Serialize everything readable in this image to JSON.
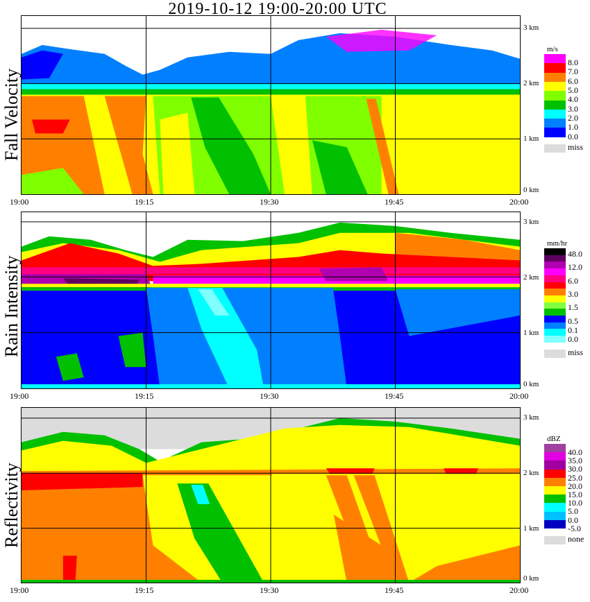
{
  "title": "2019-10-12   19:00-20:00 UTC",
  "chart_data": [
    {
      "type": "heatmap",
      "title": "Fall Velocity",
      "ylabel": "Fall Velocity",
      "x_ticks": [
        "19:00",
        "19:15",
        "19:30",
        "19:45",
        "20:00"
      ],
      "y_ticks": [
        "3 km",
        "2 km",
        "1 km",
        "0 km"
      ],
      "legend": {
        "unit": "m/s",
        "labels": [
          "8.0",
          "7.0",
          "6.0",
          "5.0",
          "4.0",
          "3.0",
          "2.0",
          "1.0",
          "0.0"
        ],
        "colors": [
          "#ff00ff",
          "#ff0000",
          "#ff8000",
          "#ffff00",
          "#80ff00",
          "#00c000",
          "#00ffff",
          "#0080ff",
          "#0000ff"
        ],
        "missing_label": "miss",
        "missing_color": "#dcdcdc"
      }
    },
    {
      "type": "heatmap",
      "title": "Rain Intensity",
      "ylabel": "Rain Intensity",
      "x_ticks": [
        "19:00",
        "19:15",
        "19:30",
        "19:45",
        "20:00"
      ],
      "y_ticks": [
        "3 km",
        "2 km",
        "1 km",
        "0 km"
      ],
      "legend": {
        "unit": "mm/hr",
        "labels": [
          "48.0",
          "12.0",
          "6.0",
          "3.0",
          "1.5",
          "0.5",
          "0.1",
          "0.0"
        ],
        "colors": [
          "#000000",
          "#600060",
          "#b000b0",
          "#ff00ff",
          "#ff0080",
          "#ff0000",
          "#ff8000",
          "#ffff00",
          "#80ff40",
          "#00c000",
          "#0000ff",
          "#0080ff",
          "#00ffff",
          "#80ffff"
        ],
        "missing_label": "miss",
        "missing_color": "#dcdcdc"
      }
    },
    {
      "type": "heatmap",
      "title": "Reflectivity",
      "ylabel": "Reflectivity",
      "x_ticks": [
        "19:00",
        "19:15",
        "19:30",
        "19:45",
        "20:00"
      ],
      "y_ticks": [
        "3 km",
        "2 km",
        "1 km",
        "0 km"
      ],
      "legend": {
        "unit": "dBZ",
        "labels": [
          "40.0",
          "35.0",
          "30.0",
          "25.0",
          "20.0",
          "15.0",
          "10.0",
          "5.0",
          "0.0",
          "-5.0"
        ],
        "colors": [
          "#a040a0",
          "#e000e0",
          "#a000a0",
          "#ff0000",
          "#ff8000",
          "#ffff00",
          "#00c000",
          "#00ffff",
          "#00c0ff",
          "#0000c0"
        ],
        "missing_label": "none",
        "missing_color": "#dcdcdc"
      }
    }
  ]
}
